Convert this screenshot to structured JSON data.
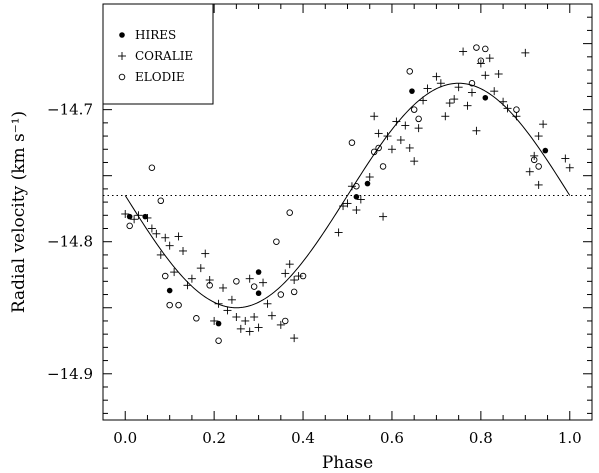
{
  "chart_data": {
    "type": "scatter",
    "title": "",
    "xlabel": "Phase",
    "ylabel": "Radial velocity (km s⁻¹)",
    "xlim": [
      -0.05,
      1.05
    ],
    "ylim": [
      -14.935,
      -14.62
    ],
    "xticks": [
      0.0,
      0.2,
      0.4,
      0.6,
      0.8,
      1.0
    ],
    "xtick_labels": [
      "0.0",
      "0.2",
      "0.4",
      "0.6",
      "0.8",
      "1.0"
    ],
    "yticks": [
      -14.7,
      -14.8,
      -14.9
    ],
    "ytick_labels": [
      "−14.7",
      "−14.8",
      "−14.9"
    ],
    "grid": false,
    "legend_position": "top-left",
    "mean_level": -14.765,
    "model_curve": {
      "gamma": -14.765,
      "semi_amplitude": 0.085,
      "description_shape": "sinusoid-like orbit fit with minimum near phase 0.25 and maximum near phase 0.75"
    },
    "series": [
      {
        "name": "HIRES",
        "marker": "filled-circle",
        "points": [
          [
            0.01,
            -14.781
          ],
          [
            0.045,
            -14.781
          ],
          [
            0.1,
            -14.837
          ],
          [
            0.21,
            -14.862
          ],
          [
            0.3,
            -14.823
          ],
          [
            0.3,
            -14.839
          ],
          [
            0.52,
            -14.766
          ],
          [
            0.545,
            -14.756
          ],
          [
            0.645,
            -14.686
          ],
          [
            0.81,
            -14.691
          ],
          [
            0.945,
            -14.731
          ]
        ]
      },
      {
        "name": "CORALIE",
        "marker": "plus",
        "points": [
          [
            0.0,
            -14.779
          ],
          [
            0.02,
            -14.783
          ],
          [
            0.03,
            -14.78
          ],
          [
            0.05,
            -14.782
          ],
          [
            0.06,
            -14.79
          ],
          [
            0.07,
            -14.794
          ],
          [
            0.08,
            -14.81
          ],
          [
            0.09,
            -14.797
          ],
          [
            0.1,
            -14.803
          ],
          [
            0.11,
            -14.823
          ],
          [
            0.12,
            -14.796
          ],
          [
            0.13,
            -14.807
          ],
          [
            0.14,
            -14.833
          ],
          [
            0.15,
            -14.828
          ],
          [
            0.17,
            -14.82
          ],
          [
            0.18,
            -14.809
          ],
          [
            0.19,
            -14.829
          ],
          [
            0.2,
            -14.86
          ],
          [
            0.21,
            -14.847
          ],
          [
            0.22,
            -14.835
          ],
          [
            0.23,
            -14.852
          ],
          [
            0.24,
            -14.844
          ],
          [
            0.25,
            -14.857
          ],
          [
            0.26,
            -14.866
          ],
          [
            0.27,
            -14.86
          ],
          [
            0.28,
            -14.868
          ],
          [
            0.28,
            -14.828
          ],
          [
            0.29,
            -14.857
          ],
          [
            0.3,
            -14.865
          ],
          [
            0.31,
            -14.831
          ],
          [
            0.32,
            -14.847
          ],
          [
            0.33,
            -14.856
          ],
          [
            0.35,
            -14.863
          ],
          [
            0.36,
            -14.824
          ],
          [
            0.37,
            -14.817
          ],
          [
            0.38,
            -14.873
          ],
          [
            0.38,
            -14.829
          ],
          [
            0.39,
            -14.826
          ],
          [
            0.48,
            -14.793
          ],
          [
            0.49,
            -14.773
          ],
          [
            0.5,
            -14.771
          ],
          [
            0.51,
            -14.758
          ],
          [
            0.52,
            -14.776
          ],
          [
            0.53,
            -14.768
          ],
          [
            0.55,
            -14.751
          ],
          [
            0.56,
            -14.705
          ],
          [
            0.57,
            -14.718
          ],
          [
            0.58,
            -14.781
          ],
          [
            0.59,
            -14.72
          ],
          [
            0.6,
            -14.73
          ],
          [
            0.61,
            -14.709
          ],
          [
            0.62,
            -14.723
          ],
          [
            0.63,
            -14.712
          ],
          [
            0.64,
            -14.729
          ],
          [
            0.65,
            -14.739
          ],
          [
            0.66,
            -14.714
          ],
          [
            0.67,
            -14.693
          ],
          [
            0.68,
            -14.684
          ],
          [
            0.7,
            -14.675
          ],
          [
            0.71,
            -14.68
          ],
          [
            0.72,
            -14.705
          ],
          [
            0.73,
            -14.695
          ],
          [
            0.74,
            -14.692
          ],
          [
            0.75,
            -14.683
          ],
          [
            0.76,
            -14.656
          ],
          [
            0.77,
            -14.697
          ],
          [
            0.78,
            -14.687
          ],
          [
            0.79,
            -14.716
          ],
          [
            0.8,
            -14.665
          ],
          [
            0.81,
            -14.674
          ],
          [
            0.82,
            -14.661
          ],
          [
            0.83,
            -14.686
          ],
          [
            0.84,
            -14.673
          ],
          [
            0.85,
            -14.694
          ],
          [
            0.86,
            -14.699
          ],
          [
            0.88,
            -14.705
          ],
          [
            0.9,
            -14.657
          ],
          [
            0.91,
            -14.747
          ],
          [
            0.92,
            -14.735
          ],
          [
            0.93,
            -14.72
          ],
          [
            0.93,
            -14.757
          ],
          [
            0.94,
            -14.711
          ],
          [
            0.99,
            -14.737
          ],
          [
            1.0,
            -14.744
          ]
        ]
      },
      {
        "name": "ELODIE",
        "marker": "open-circle",
        "points": [
          [
            0.01,
            -14.788
          ],
          [
            0.06,
            -14.744
          ],
          [
            0.08,
            -14.769
          ],
          [
            0.09,
            -14.826
          ],
          [
            0.1,
            -14.848
          ],
          [
            0.12,
            -14.848
          ],
          [
            0.16,
            -14.858
          ],
          [
            0.19,
            -14.833
          ],
          [
            0.21,
            -14.875
          ],
          [
            0.25,
            -14.83
          ],
          [
            0.29,
            -14.834
          ],
          [
            0.34,
            -14.8
          ],
          [
            0.35,
            -14.84
          ],
          [
            0.36,
            -14.86
          ],
          [
            0.37,
            -14.778
          ],
          [
            0.38,
            -14.838
          ],
          [
            0.4,
            -14.826
          ],
          [
            0.51,
            -14.725
          ],
          [
            0.52,
            -14.758
          ],
          [
            0.56,
            -14.732
          ],
          [
            0.57,
            -14.729
          ],
          [
            0.58,
            -14.743
          ],
          [
            0.64,
            -14.671
          ],
          [
            0.65,
            -14.7
          ],
          [
            0.66,
            -14.707
          ],
          [
            0.78,
            -14.68
          ],
          [
            0.79,
            -14.653
          ],
          [
            0.8,
            -14.663
          ],
          [
            0.81,
            -14.654
          ],
          [
            0.88,
            -14.7
          ],
          [
            0.92,
            -14.738
          ],
          [
            0.93,
            -14.743
          ]
        ]
      }
    ]
  }
}
